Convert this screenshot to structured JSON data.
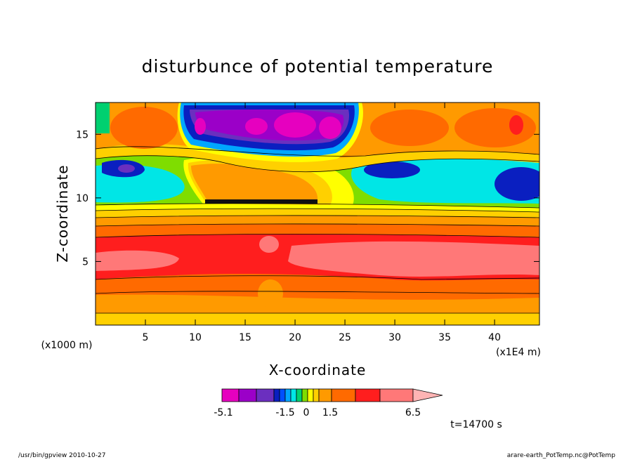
{
  "chart_data": {
    "type": "heatmap",
    "title": "disturbunce of potential temperature",
    "xlabel": "X-coordinate",
    "ylabel": "Z-coordinate",
    "x_unit": "(x1E4 m)",
    "y_unit": "(x1000 m)",
    "xlim": [
      0,
      44.5
    ],
    "ylim": [
      0,
      17.5
    ],
    "x_ticks": [
      "5",
      "10",
      "15",
      "20",
      "25",
      "30",
      "35",
      "40"
    ],
    "y_ticks": [
      "5",
      "10",
      "15"
    ],
    "x_tick_values": [
      5,
      10,
      15,
      20,
      25,
      30,
      35,
      40
    ],
    "y_tick_values": [
      5,
      10,
      15
    ],
    "colorbar": {
      "labels": [
        "-5.1",
        "-1.5",
        "0",
        "1.5",
        "6.5"
      ],
      "label_values": [
        -5.1,
        -1.5,
        0,
        1.5,
        6.5
      ],
      "colors": [
        "#e600bf",
        "#9b00c8",
        "#6b2fbf",
        "#0a1fc0",
        "#0050ff",
        "#00a6ff",
        "#00e6e6",
        "#00d070",
        "#7fdd00",
        "#ffff00",
        "#ffd000",
        "#ff9a00",
        "#ff6a00",
        "#ff1e1e",
        "#ff7878",
        "#ffb4b4"
      ]
    },
    "time_label": "t=14700 s",
    "footer_left": "/usr/bin/gpview   2010-10-27",
    "footer_right": "arare-earth_PotTemp.nc@PotTemp"
  }
}
